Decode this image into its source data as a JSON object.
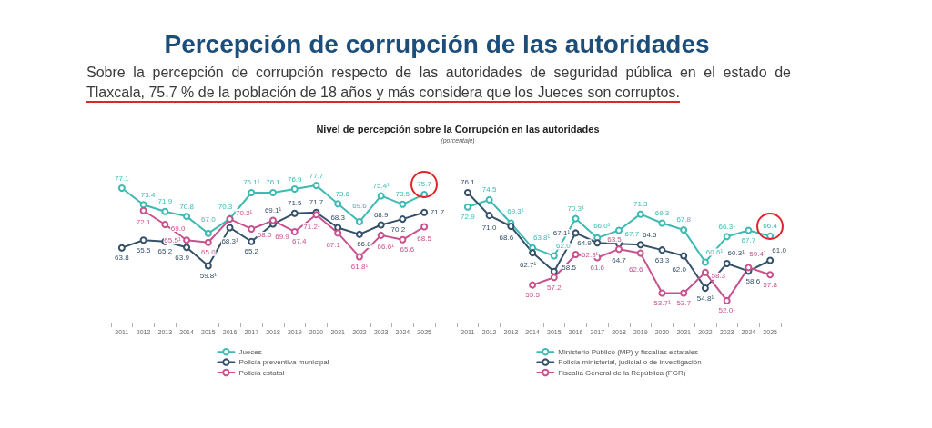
{
  "chart_data": [
    {
      "type": "line",
      "title": "Percepción de corrupción de las autoridades",
      "subtitle": "Sobre la percepción de corrupción respecto de las autoridades de seguridad pública en el estado de Tlaxcala, 75.7 % de la población de 18 años y más considera que los Jueces son corruptos.",
      "annotations": [
        "Nivel de percepción sobre la Corrupción en las autoridades",
        "(porcentaje)"
      ],
      "categories": [
        "2011",
        "2012",
        "2013",
        "2014",
        "2015",
        "2016",
        "2017",
        "2018",
        "2019",
        "2020",
        "2021",
        "2022",
        "2023",
        "2024",
        "2025"
      ],
      "series": [
        {
          "name": "Jueces",
          "color": "#3dbab2",
          "values": [
            77.1,
            73.4,
            71.9,
            70.8,
            67.0,
            70.3,
            76.1,
            76.1,
            76.9,
            77.7,
            73.6,
            69.6,
            75.4,
            73.5,
            75.7
          ],
          "value_labels": [
            "77.1",
            "73.4",
            "71.9",
            "70.8",
            "67.0",
            "70.3",
            "76.1¹",
            "76.1",
            "76.9",
            "77.7",
            "73.6",
            "69.6",
            "75.4¹",
            "73.5",
            "75.7"
          ]
        },
        {
          "name": "Policía preventiva municipal",
          "color": "#34506a",
          "values": [
            63.8,
            65.5,
            65.2,
            63.9,
            59.8,
            68.3,
            65.2,
            69.1,
            71.5,
            71.7,
            68.3,
            66.8,
            68.9,
            70.2,
            71.7
          ],
          "value_labels": [
            "63.8",
            "65.5",
            "65.2",
            "63.9",
            "59.8¹",
            "68.3¹",
            "65.2",
            "69.1¹",
            "71.5",
            "71.7",
            "68.3",
            "66.8",
            "68.9",
            "70.2",
            "71.7"
          ]
        },
        {
          "name": "Policía estatal",
          "color": "#c9518d",
          "values": [
            null,
            72.1,
            69.0,
            65.5,
            65.0,
            70.2,
            68.0,
            69.9,
            67.4,
            71.2,
            67.1,
            61.8,
            66.6,
            65.6,
            68.5
          ],
          "value_labels": [
            null,
            "72.1",
            "69.0",
            "65.5¹",
            "65.0",
            "70.2¹",
            "68.0",
            "69.9",
            "67.4",
            "71.2¹",
            "67.1",
            "61.8¹",
            "66.6¹",
            "65.6",
            "68.5"
          ]
        }
      ],
      "marker": "circle",
      "legend": "bottom"
    },
    {
      "type": "line",
      "categories": [
        "2011",
        "2012",
        "2013",
        "2014",
        "2015",
        "2016",
        "2017",
        "2018",
        "2019",
        "2020",
        "2021",
        "2022",
        "2023",
        "2024",
        "2025"
      ],
      "series": [
        {
          "name": "Ministerio Público (MP) y fiscalías estatales",
          "color": "#3dbab2",
          "values": [
            72.9,
            74.5,
            69.3,
            63.8,
            62.0,
            70.3,
            66.0,
            67.7,
            71.3,
            69.3,
            67.8,
            60.6,
            66.3,
            67.7,
            66.4
          ],
          "value_labels": [
            "72.9",
            "74.5",
            "69.3¹",
            "63.8¹",
            "62.0",
            "70.3¹",
            "66.0¹",
            "67.7",
            "71.3",
            "69.3",
            "67.8",
            "60.6¹",
            "66.3¹",
            "67.7",
            "66.4"
          ]
        },
        {
          "name": "Policía ministerial, judicial o de investigación",
          "color": "#34506a",
          "values": [
            76.1,
            71.0,
            68.6,
            62.7,
            58.5,
            67.1,
            64.9,
            64.7,
            64.5,
            63.3,
            62.0,
            54.8,
            60.3,
            58.6,
            61.0
          ],
          "value_labels": [
            "76.1",
            "71.0",
            "68.6",
            "62.7¹",
            "58.5",
            "67.1¹",
            "64.9",
            "64.7",
            "64.5",
            "63.3",
            "62.0",
            "54.8¹",
            "60.3¹",
            "58.6",
            "61.0"
          ]
        },
        {
          "name": "Fiscalía General de la República (FGR)",
          "color": "#c9518d",
          "values": [
            null,
            null,
            null,
            55.5,
            57.2,
            62.3,
            61.6,
            63.5,
            62.6,
            53.7,
            53.7,
            58.3,
            52.0,
            59.4,
            57.8
          ],
          "value_labels": [
            null,
            null,
            null,
            "55.5",
            "57.2",
            "62.3¹",
            "61.6",
            "63.5",
            "62.6",
            "53.7¹",
            "53.7",
            "58.3",
            "52.0¹",
            "59.4¹",
            "57.8"
          ]
        }
      ],
      "marker": "circle",
      "legend": "bottom"
    }
  ]
}
